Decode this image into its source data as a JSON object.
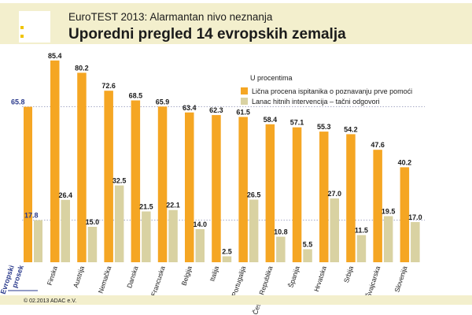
{
  "header": {
    "supertitle": "EuroTEST 2013: Alarmantan nivo neznanja",
    "title": "Uporedni pregled 14 evropskih zemalja"
  },
  "footer": {
    "copyright": "© 02.2013  ADAC e.V."
  },
  "colors": {
    "primary": "#f5a623",
    "secondary": "#d9d2a2",
    "avg_accent": "#2a3a8c",
    "band": "#f3efcd",
    "marker": "#f0c400"
  },
  "chart_data": {
    "type": "bar",
    "unit_label": "U procentima",
    "average": {
      "label_line1": "Evropski",
      "label_line2": "prosek",
      "values": [
        65.8,
        17.8
      ]
    },
    "categories": [
      "Finska",
      "Austrija",
      "Nemačka",
      "Danska",
      "Francuska",
      "Belgija",
      "Italija",
      "Portugalija",
      "Češka Republika",
      "Španija",
      "Hrvatska",
      "Srbija",
      "Švajcarska",
      "Slovenija"
    ],
    "series": [
      {
        "name": "Lična procena ispitanika o poznavanju prve pomoći",
        "color": "#f5a623",
        "values": [
          85.4,
          80.2,
          72.6,
          68.5,
          65.9,
          63.4,
          62.3,
          61.5,
          58.4,
          57.1,
          55.3,
          54.2,
          47.6,
          40.2
        ]
      },
      {
        "name": "Lanac hitnih intervencija – tačni odgovori",
        "color": "#d9d2a2",
        "values": [
          26.4,
          15.0,
          32.5,
          21.5,
          22.1,
          14.0,
          2.5,
          26.5,
          10.8,
          5.5,
          27.0,
          11.5,
          19.5,
          17.0
        ]
      }
    ],
    "value_labels": [
      [
        "85.4",
        "80.2",
        "72.6",
        "68.5",
        "65.9",
        "63.4",
        "62.3",
        "61.5",
        "58.4",
        "57.1",
        "55.3",
        "54.2",
        "47.6",
        "40.2"
      ],
      [
        "26.4",
        "15.0",
        "32.5",
        "21.5",
        "22.1",
        "14.0",
        "2.5",
        "26.5",
        "10.8",
        "5.5",
        "27.0",
        "11.5",
        "19.5",
        "17.0"
      ]
    ],
    "average_labels": [
      "65.8",
      "17.8"
    ],
    "ylim": [
      0,
      100
    ],
    "grid": false,
    "reference_lines": [
      65.8,
      17.8
    ]
  }
}
